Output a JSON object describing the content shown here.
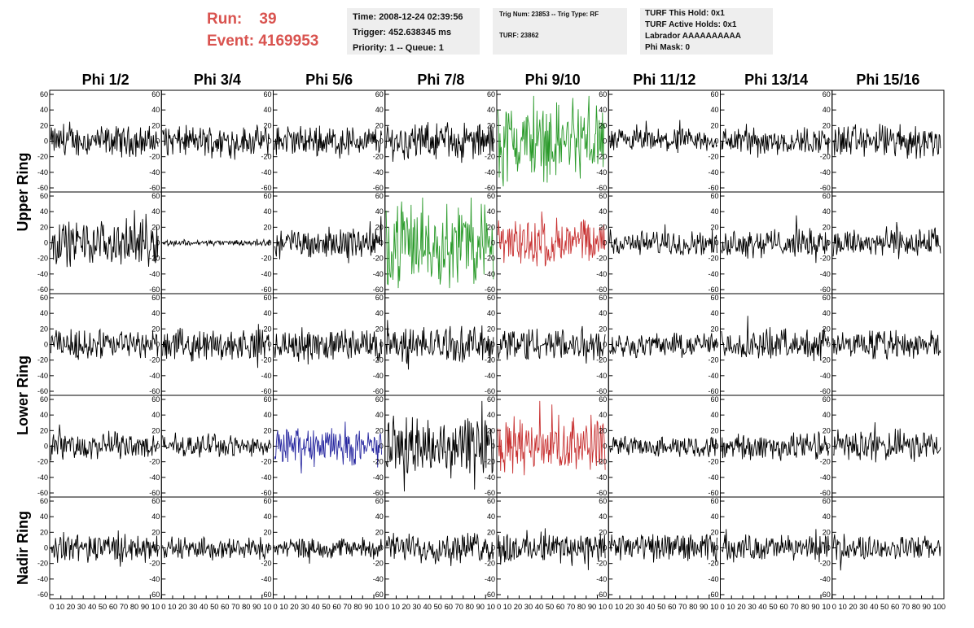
{
  "header": {
    "run_label": "Run:",
    "run_value": "39",
    "event_label": "Event:",
    "event_value": "4169953",
    "time": "Time: 2008-12-24 02:39:56",
    "trigger": "Trigger: 452.638345 ms",
    "priority": "Priority: 1 -- Queue: 1",
    "trig_num": "Trig Num: 23853 -- Trig Type: RF",
    "turf": "TURF: 23862",
    "turf_this_hold": "TURF This Hold: 0x1",
    "turf_active_holds": "TURF Active Holds: 0x1",
    "labrador": "Labrador AAAAAAAAAA",
    "phi_mask": "Phi Mask: 0"
  },
  "chart_data": {
    "type": "line",
    "columns": [
      "Phi 1/2",
      "Phi 3/4",
      "Phi 5/6",
      "Phi 7/8",
      "Phi 9/10",
      "Phi 11/12",
      "Phi 13/14",
      "Phi 15/16"
    ],
    "ring_labels": [
      "Upper Ring",
      "Lower Ring",
      "Nadir Ring"
    ],
    "rows": 5,
    "ylim": [
      -60,
      60
    ],
    "yticks": [
      -60,
      -40,
      -20,
      0,
      20,
      40,
      60
    ],
    "xlim": [
      0,
      100
    ],
    "xtick_text": [
      "0 10 20 30 40 50 60 70 80 90 10",
      "0 10 20 30 40 50 60 70 80 90 10",
      "0 10 20 30 40 50 60 70 80 90 10",
      "0 10 20 30 40 50 60 70 80 90 10",
      "0 10 20 30 40 50 60 70 80 90 10",
      "0 10 20 30 40 50 60 70 80 90 10",
      "0 10 20 30 40 50 60 70 80 90 10",
      "0 10 20 30 40 50 60 70 80 90 100"
    ],
    "colors": {
      "default": "#000000",
      "green": "#2a9a2a",
      "red": "#c83232",
      "blue": "#2828a0"
    },
    "trace_colors": [
      [
        "default",
        "default",
        "default",
        "default",
        "green",
        "default",
        "default",
        "default"
      ],
      [
        "default",
        "default",
        "default",
        "green",
        "red",
        "default",
        "default",
        "default"
      ],
      [
        "default",
        "default",
        "default",
        "default",
        "default",
        "default",
        "default",
        "default"
      ],
      [
        "default",
        "default",
        "blue",
        "default",
        "red",
        "default",
        "default",
        "default"
      ],
      [
        "default",
        "default",
        "default",
        "default",
        "default",
        "default",
        "default",
        "default"
      ]
    ],
    "trace_amplitudes": [
      [
        15,
        15,
        15,
        18,
        38,
        12,
        14,
        17
      ],
      [
        22,
        3,
        15,
        42,
        24,
        12,
        14,
        15
      ],
      [
        15,
        15,
        16,
        18,
        18,
        12,
        15,
        14
      ],
      [
        14,
        10,
        19,
        30,
        28,
        10,
        14,
        16
      ],
      [
        14,
        11,
        10,
        15,
        16,
        14,
        13,
        12
      ]
    ]
  }
}
